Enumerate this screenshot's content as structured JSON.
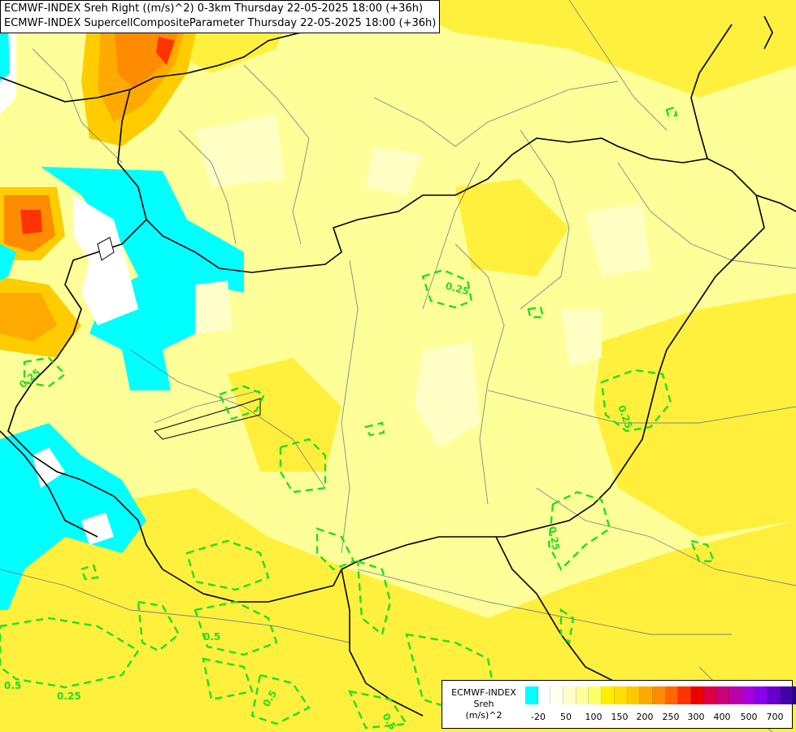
{
  "title": {
    "line1": "ECMWF-INDEX Sreh Right ((m/s)^2) 0-3km Thursday 22-05-2025 18:00 (+36h)",
    "line2": "ECMWF-INDEX SupercellCompositeParameter Thursday 22-05-2025 18:00 (+36h)"
  },
  "legend": {
    "line1": "ECMWF-INDEX",
    "line2": "Sreh",
    "line3": "(m/s)^2",
    "colors": [
      "#00ffff",
      "#ffffff",
      "#ffffee",
      "#ffffcc",
      "#ffffa0",
      "#ffff66",
      "#ffee00",
      "#ffdd00",
      "#ffc800",
      "#ffaa00",
      "#ff8c00",
      "#ff6600",
      "#ff3300",
      "#ee0000",
      "#dd0044",
      "#cc0077",
      "#bb00aa",
      "#aa00dd",
      "#8800ee",
      "#6600cc",
      "#4400aa",
      "#220088",
      "#000066"
    ],
    "ticks": [
      "-20",
      "50",
      "100",
      "150",
      "200",
      "250",
      "300",
      "400",
      "500",
      "700"
    ]
  },
  "contours": {
    "labels": [
      "0.25",
      "0.25",
      "0.25",
      "0.25",
      "0.5",
      "0.5",
      "0.25",
      "0.5",
      "0.5"
    ],
    "color": "#22dd22"
  }
}
